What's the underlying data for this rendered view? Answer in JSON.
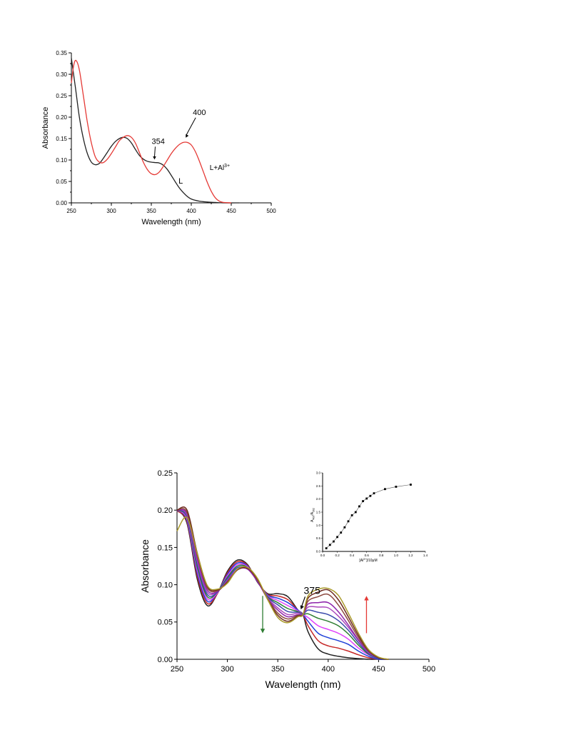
{
  "chart_data": [
    {
      "type": "line",
      "xlabel": "Wavelength (nm)",
      "ylabel": "Absorbance",
      "xlim": [
        250,
        500
      ],
      "ylim": [
        0,
        0.35
      ],
      "xticks": [
        250,
        300,
        350,
        400,
        450,
        500
      ],
      "yticks": [
        0.0,
        0.05,
        0.1,
        0.15,
        0.2,
        0.25,
        0.3,
        0.35
      ],
      "grid": false,
      "series": [
        {
          "name": "L",
          "color": "#222222",
          "points": [
            [
              250,
              0.338
            ],
            [
              255,
              0.27
            ],
            [
              260,
              0.2
            ],
            [
              265,
              0.15
            ],
            [
              270,
              0.115
            ],
            [
              275,
              0.095
            ],
            [
              280,
              0.089
            ],
            [
              285,
              0.092
            ],
            [
              290,
              0.104
            ],
            [
              295,
              0.118
            ],
            [
              300,
              0.132
            ],
            [
              305,
              0.143
            ],
            [
              310,
              0.15
            ],
            [
              315,
              0.153
            ],
            [
              320,
              0.15
            ],
            [
              325,
              0.14
            ],
            [
              330,
              0.125
            ],
            [
              335,
              0.111
            ],
            [
              340,
              0.102
            ],
            [
              345,
              0.097
            ],
            [
              350,
              0.095
            ],
            [
              355,
              0.094
            ],
            [
              360,
              0.093
            ],
            [
              365,
              0.088
            ],
            [
              370,
              0.078
            ],
            [
              375,
              0.064
            ],
            [
              380,
              0.049
            ],
            [
              385,
              0.035
            ],
            [
              390,
              0.024
            ],
            [
              395,
              0.015
            ],
            [
              400,
              0.009
            ],
            [
              410,
              0.004
            ],
            [
              420,
              0.002
            ],
            [
              430,
              0.001
            ],
            [
              440,
              0.0
            ],
            [
              460,
              0.0
            ]
          ]
        },
        {
          "name": "L+Al3+",
          "color": "#e53935",
          "points": [
            [
              250,
              0.28
            ],
            [
              253,
              0.322
            ],
            [
              256,
              0.332
            ],
            [
              260,
              0.31
            ],
            [
              265,
              0.25
            ],
            [
              270,
              0.188
            ],
            [
              275,
              0.14
            ],
            [
              280,
              0.107
            ],
            [
              285,
              0.095
            ],
            [
              290,
              0.094
            ],
            [
              295,
              0.102
            ],
            [
              300,
              0.115
            ],
            [
              305,
              0.13
            ],
            [
              310,
              0.145
            ],
            [
              315,
              0.153
            ],
            [
              320,
              0.157
            ],
            [
              325,
              0.153
            ],
            [
              330,
              0.14
            ],
            [
              335,
              0.118
            ],
            [
              340,
              0.095
            ],
            [
              345,
              0.078
            ],
            [
              350,
              0.068
            ],
            [
              355,
              0.066
            ],
            [
              360,
              0.072
            ],
            [
              365,
              0.085
            ],
            [
              370,
              0.1
            ],
            [
              375,
              0.115
            ],
            [
              380,
              0.127
            ],
            [
              385,
              0.136
            ],
            [
              390,
              0.141
            ],
            [
              395,
              0.141
            ],
            [
              400,
              0.135
            ],
            [
              405,
              0.12
            ],
            [
              410,
              0.098
            ],
            [
              415,
              0.073
            ],
            [
              420,
              0.048
            ],
            [
              425,
              0.027
            ],
            [
              430,
              0.012
            ],
            [
              435,
              0.004
            ],
            [
              440,
              0.001
            ],
            [
              450,
              0.0
            ]
          ]
        }
      ],
      "annotations": [
        {
          "text": "354",
          "x": 354,
          "y": 0.096
        },
        {
          "text": "400",
          "x": 393,
          "y": 0.142
        }
      ],
      "series_labels": [
        "L",
        "L+Al"
      ],
      "superscript": "3+"
    },
    {
      "type": "line",
      "xlabel": "Wavelength (nm)",
      "ylabel": "Absorbance",
      "xlim": [
        250,
        500
      ],
      "ylim": [
        0,
        0.25
      ],
      "xticks": [
        250,
        300,
        350,
        400,
        450,
        500
      ],
      "yticks": [
        0.0,
        0.05,
        0.1,
        0.15,
        0.2,
        0.25
      ],
      "grid": false,
      "x_grid": [
        250,
        260,
        270,
        280,
        290,
        300,
        310,
        320,
        330,
        340,
        350,
        360,
        370,
        375,
        380,
        390,
        400,
        410,
        420,
        430,
        440,
        450,
        460
      ],
      "series": [
        {
          "color": "#222222",
          "values": [
            0.2,
            0.182,
            0.108,
            0.072,
            0.088,
            0.118,
            0.133,
            0.127,
            0.103,
            0.088,
            0.088,
            0.084,
            0.066,
            0.06,
            0.037,
            0.014,
            0.007,
            0.004,
            0.002,
            0.001,
            0.0,
            0.0,
            0.0
          ]
        },
        {
          "color": "#c62828",
          "values": [
            0.199,
            0.184,
            0.112,
            0.075,
            0.088,
            0.116,
            0.131,
            0.126,
            0.104,
            0.087,
            0.085,
            0.08,
            0.066,
            0.06,
            0.045,
            0.025,
            0.018,
            0.015,
            0.011,
            0.006,
            0.002,
            0.0,
            0.0
          ]
        },
        {
          "color": "#1e3fd8",
          "values": [
            0.2,
            0.186,
            0.116,
            0.078,
            0.089,
            0.114,
            0.129,
            0.125,
            0.104,
            0.086,
            0.082,
            0.076,
            0.066,
            0.06,
            0.051,
            0.035,
            0.029,
            0.025,
            0.02,
            0.011,
            0.004,
            0.0,
            0.0
          ]
        },
        {
          "color": "#e040fb",
          "values": [
            0.199,
            0.188,
            0.12,
            0.081,
            0.089,
            0.112,
            0.127,
            0.124,
            0.104,
            0.085,
            0.079,
            0.072,
            0.065,
            0.06,
            0.056,
            0.045,
            0.04,
            0.035,
            0.027,
            0.015,
            0.006,
            0.001,
            0.0
          ]
        },
        {
          "color": "#2e7d32",
          "values": [
            0.199,
            0.19,
            0.124,
            0.084,
            0.09,
            0.11,
            0.125,
            0.123,
            0.104,
            0.084,
            0.076,
            0.068,
            0.064,
            0.06,
            0.061,
            0.055,
            0.051,
            0.045,
            0.034,
            0.019,
            0.007,
            0.001,
            0.0
          ]
        },
        {
          "color": "#3949ab",
          "values": [
            0.2,
            0.191,
            0.128,
            0.087,
            0.09,
            0.108,
            0.123,
            0.122,
            0.104,
            0.083,
            0.073,
            0.064,
            0.063,
            0.06,
            0.066,
            0.063,
            0.06,
            0.052,
            0.039,
            0.022,
            0.008,
            0.001,
            0.0
          ]
        },
        {
          "color": "#ab47bc",
          "values": [
            0.2,
            0.193,
            0.132,
            0.09,
            0.091,
            0.106,
            0.121,
            0.121,
            0.104,
            0.082,
            0.069,
            0.06,
            0.062,
            0.06,
            0.07,
            0.07,
            0.069,
            0.058,
            0.043,
            0.025,
            0.009,
            0.002,
            0.0
          ]
        },
        {
          "color": "#8e24aa",
          "values": [
            0.199,
            0.195,
            0.136,
            0.093,
            0.091,
            0.105,
            0.12,
            0.121,
            0.104,
            0.081,
            0.066,
            0.057,
            0.06,
            0.06,
            0.074,
            0.076,
            0.076,
            0.064,
            0.046,
            0.026,
            0.01,
            0.002,
            0.0
          ]
        },
        {
          "color": "#8d4a40",
          "values": [
            0.2,
            0.197,
            0.14,
            0.096,
            0.092,
            0.104,
            0.12,
            0.122,
            0.106,
            0.081,
            0.062,
            0.054,
            0.059,
            0.06,
            0.078,
            0.084,
            0.087,
            0.073,
            0.052,
            0.029,
            0.011,
            0.002,
            0.0
          ]
        },
        {
          "color": "#6d2a1e",
          "values": [
            0.2,
            0.2,
            0.143,
            0.098,
            0.093,
            0.103,
            0.12,
            0.122,
            0.107,
            0.08,
            0.059,
            0.051,
            0.058,
            0.06,
            0.082,
            0.09,
            0.093,
            0.08,
            0.057,
            0.032,
            0.012,
            0.002,
            0.0
          ]
        },
        {
          "color": "#a99a2a",
          "values": [
            0.172,
            0.19,
            0.142,
            0.099,
            0.094,
            0.102,
            0.121,
            0.123,
            0.108,
            0.08,
            0.056,
            0.049,
            0.057,
            0.06,
            0.085,
            0.094,
            0.095,
            0.086,
            0.062,
            0.035,
            0.013,
            0.003,
            0.0
          ]
        }
      ],
      "annotations": [
        {
          "text": "375",
          "x": 375,
          "y": 0.062
        }
      ],
      "arrows": [
        {
          "color": "#2e7d32",
          "direction": "down",
          "x": 335
        },
        {
          "color": "#e53935",
          "direction": "up",
          "x": 438
        }
      ],
      "inset": {
        "type": "scatter",
        "xlabel": "[Al",
        "xlabel_superscript": "3+",
        "xlabel_suffix": "]/10μM",
        "ylabel": "A",
        "ylabel_sub1": "400",
        "ylabel_mid": "/A",
        "ylabel_sub2": "362",
        "xlim": [
          0,
          1.4
        ],
        "ylim": [
          0,
          3.0
        ],
        "xticks": [
          "0.0",
          "0.2",
          "0.4",
          "0.6",
          "0.8",
          "1.0",
          "1.2",
          "1.4"
        ],
        "yticks": [
          "0.0",
          "0.5",
          "1.0",
          "1.5",
          "2.0",
          "2.5",
          "3.0"
        ],
        "x": [
          0.05,
          0.1,
          0.15,
          0.2,
          0.25,
          0.3,
          0.35,
          0.4,
          0.45,
          0.5,
          0.55,
          0.6,
          0.65,
          0.7,
          0.85,
          1.0,
          1.2
        ],
        "y": [
          0.12,
          0.25,
          0.38,
          0.55,
          0.72,
          0.92,
          1.15,
          1.38,
          1.5,
          1.72,
          1.92,
          2.02,
          2.12,
          2.22,
          2.38,
          2.47,
          2.55
        ]
      }
    }
  ]
}
